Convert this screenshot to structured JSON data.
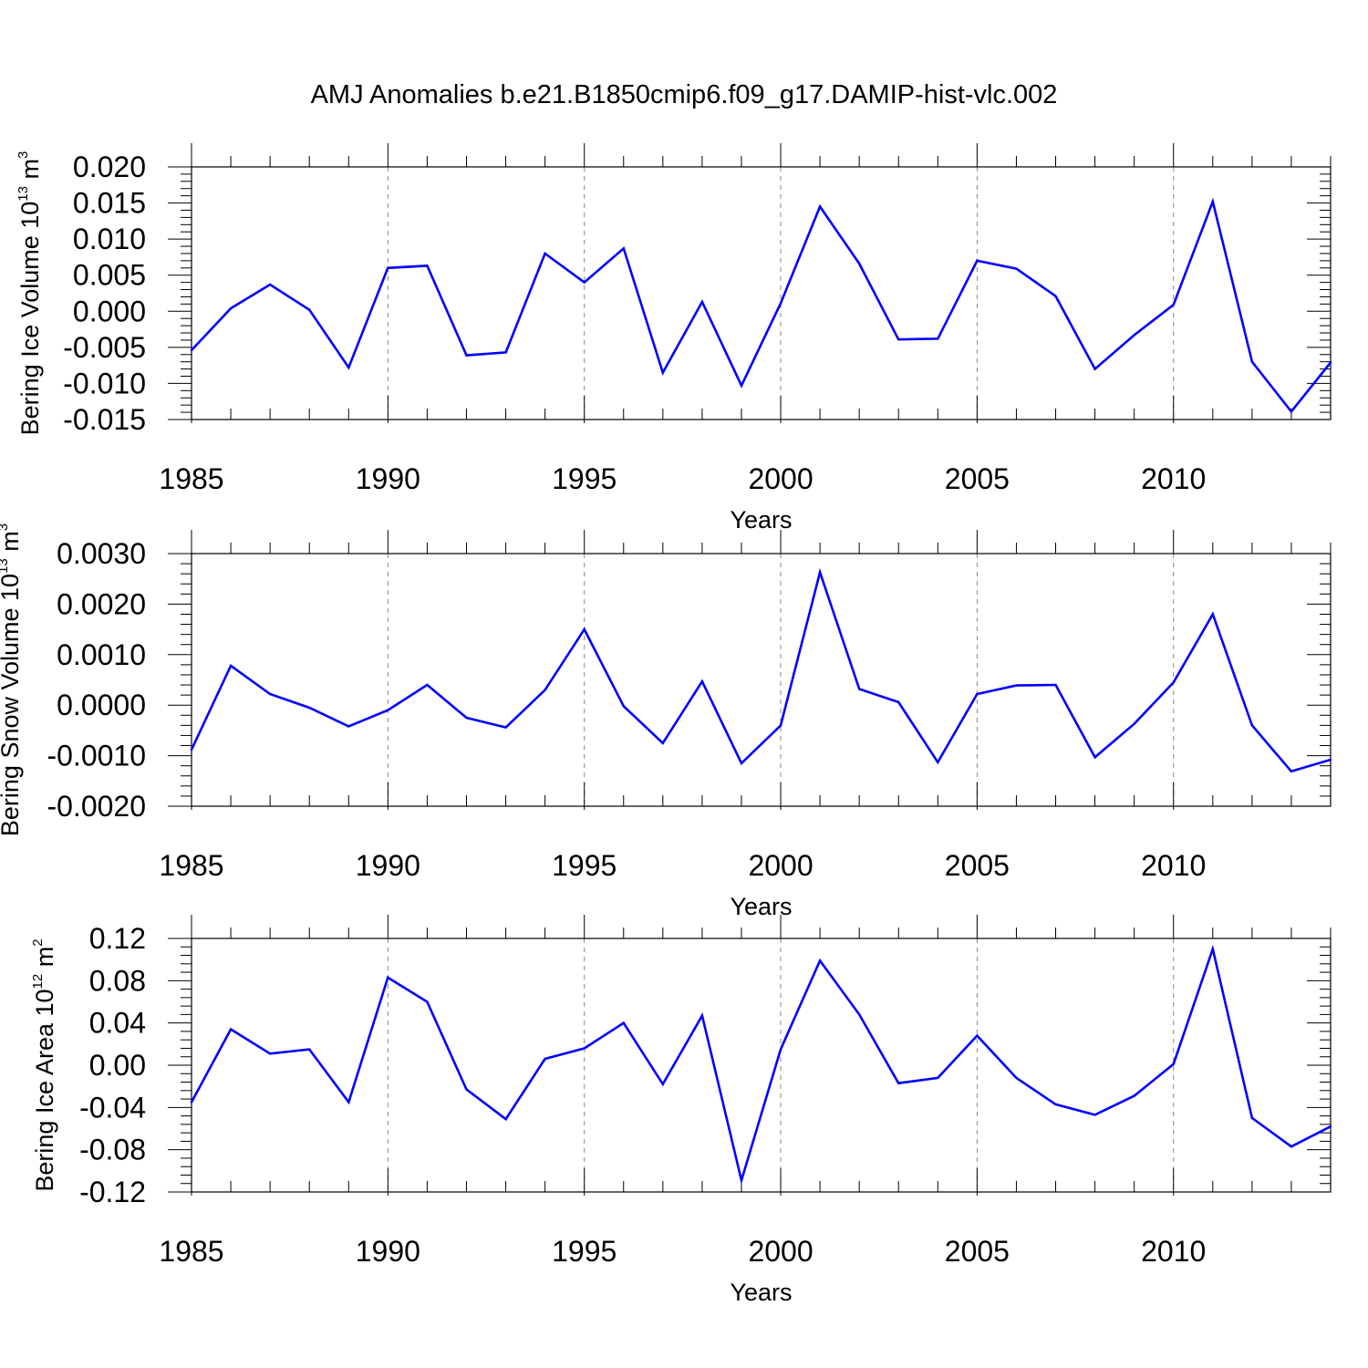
{
  "figure": {
    "title": "AMJ Anomalies b.e21.B1850cmip6.f09_g17.DAMIP-hist-vlc.002",
    "line_color": "#0000ff",
    "grid_color": "#888888"
  },
  "chart_data": [
    {
      "type": "line",
      "ylabel": "Bering Ice Volume 10",
      "ylabel_exponent": "13",
      "ylabel_unit": "m",
      "ylabel_unit_exponent": "3",
      "xlabel": "Years",
      "xlim": [
        1985,
        2014
      ],
      "ylim": [
        -0.015,
        0.02
      ],
      "x_ticks": [
        "1985",
        "1990",
        "1995",
        "2000",
        "2005",
        "2010"
      ],
      "y_ticks": [
        "0.020",
        "0.015",
        "0.010",
        "0.005",
        "0.000",
        "-0.005",
        "-0.010",
        "-0.015"
      ],
      "y_tick_values": [
        0.02,
        0.015,
        0.01,
        0.005,
        0.0,
        -0.005,
        -0.01,
        -0.015
      ],
      "grid": "vertical dashed at major x ticks",
      "x": [
        1985,
        1986,
        1987,
        1988,
        1989,
        1990,
        1991,
        1992,
        1993,
        1994,
        1995,
        1996,
        1997,
        1998,
        1999,
        2000,
        2001,
        2002,
        2003,
        2004,
        2005,
        2006,
        2007,
        2008,
        2009,
        2010,
        2011,
        2012,
        2013,
        2014
      ],
      "values": [
        -0.0054,
        0.0004,
        0.0037,
        0.0002,
        -0.0078,
        0.006,
        0.0063,
        -0.0061,
        -0.0057,
        0.008,
        0.004,
        0.0087,
        -0.0085,
        0.0013,
        -0.0103,
        0.0011,
        0.0145,
        0.0066,
        -0.0039,
        -0.0038,
        0.007,
        0.0059,
        0.0021,
        -0.008,
        -0.0033,
        0.0009,
        0.0152,
        -0.007,
        -0.0139,
        -0.0071
      ]
    },
    {
      "type": "line",
      "ylabel": "Bering Snow Volume 10",
      "ylabel_exponent": "13",
      "ylabel_unit": "m",
      "ylabel_unit_exponent": "3",
      "xlabel": "Years",
      "xlim": [
        1985,
        2014
      ],
      "ylim": [
        -0.002,
        0.003
      ],
      "x_ticks": [
        "1985",
        "1990",
        "1995",
        "2000",
        "2005",
        "2010"
      ],
      "y_ticks": [
        "0.0030",
        "0.0020",
        "0.0010",
        "0.0000",
        "-0.0010",
        "-0.0020"
      ],
      "y_tick_values": [
        0.003,
        0.002,
        0.001,
        0.0,
        -0.001,
        -0.002
      ],
      "grid": "vertical dashed at major x ticks",
      "x": [
        1985,
        1986,
        1987,
        1988,
        1989,
        1990,
        1991,
        1992,
        1993,
        1994,
        1995,
        1996,
        1997,
        1998,
        1999,
        2000,
        2001,
        2002,
        2003,
        2004,
        2005,
        2006,
        2007,
        2008,
        2009,
        2010,
        2011,
        2012,
        2013,
        2014
      ],
      "values": [
        -0.00088,
        0.00078,
        0.00022,
        -5e-05,
        -0.00042,
        -0.0001,
        0.0004,
        -0.00025,
        -0.00044,
        0.0003,
        0.0015,
        -2e-05,
        -0.00075,
        0.00047,
        -0.00115,
        -0.0004,
        0.00263,
        0.00032,
        6e-05,
        -0.00113,
        0.00022,
        0.00039,
        0.0004,
        -0.00103,
        -0.00037,
        0.00045,
        0.0018,
        -0.0004,
        -0.00131,
        -0.00108
      ]
    },
    {
      "type": "line",
      "ylabel": "Bering Ice Area 10",
      "ylabel_exponent": "12",
      "ylabel_unit": "m",
      "ylabel_unit_exponent": "2",
      "xlabel": "Years",
      "xlim": [
        1985,
        2014
      ],
      "ylim": [
        -0.12,
        0.12
      ],
      "x_ticks": [
        "1985",
        "1990",
        "1995",
        "2000",
        "2005",
        "2010"
      ],
      "y_ticks": [
        "0.12",
        "0.08",
        "0.04",
        "0.00",
        "-0.04",
        "-0.08",
        "-0.12"
      ],
      "y_tick_values": [
        0.12,
        0.08,
        0.04,
        0.0,
        -0.04,
        -0.08,
        -0.12
      ],
      "grid": "vertical dashed at major x ticks",
      "x": [
        1985,
        1986,
        1987,
        1988,
        1989,
        1990,
        1991,
        1992,
        1993,
        1994,
        1995,
        1996,
        1997,
        1998,
        1999,
        2000,
        2001,
        2002,
        2003,
        2004,
        2005,
        2006,
        2007,
        2008,
        2009,
        2010,
        2011,
        2012,
        2013,
        2014
      ],
      "values": [
        -0.035,
        0.034,
        0.011,
        0.015,
        -0.035,
        0.083,
        0.06,
        -0.023,
        -0.051,
        0.006,
        0.016,
        0.04,
        -0.018,
        0.047,
        -0.109,
        0.015,
        0.099,
        0.048,
        -0.017,
        -0.012,
        0.028,
        -0.012,
        -0.037,
        -0.047,
        -0.029,
        0.001,
        0.11,
        -0.05,
        -0.077,
        -0.058
      ]
    }
  ]
}
